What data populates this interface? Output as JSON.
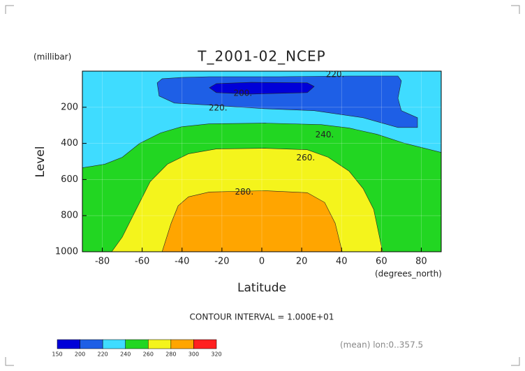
{
  "chart_data": {
    "type": "contour",
    "title": "T_2001-02_NCEP",
    "y_unit": "(millibar)",
    "y_label": "Level",
    "x_label": "Latitude",
    "x_unit": "(degrees_north)",
    "caption": "CONTOUR INTERVAL = 1.000E+01",
    "note": "(mean) lon:0..357.5",
    "xlim": [
      -90,
      90
    ],
    "xticks": [
      -80,
      -60,
      -40,
      -20,
      0,
      20,
      40,
      60,
      80
    ],
    "ylim": [
      0,
      1000
    ],
    "yticks": [
      200,
      400,
      600,
      800,
      1000
    ],
    "y_inverted": true,
    "grid": true,
    "colorbar": {
      "levels": [
        150,
        200,
        220,
        240,
        260,
        280,
        300,
        320
      ],
      "colors": [
        "#0000d8",
        "#1e5fe6",
        "#3fdcff",
        "#22d622",
        "#f4f41c",
        "#ffa500",
        "#ff2020"
      ]
    },
    "regions": [
      {
        "level": 220,
        "lat": [
          -90,
          90,
          90,
          -90
        ],
        "pressure": [
          0,
          0,
          1000,
          1000
        ]
      },
      {
        "level": 240,
        "lat": [
          -90,
          -78.8,
          -70,
          -61.3,
          -50.8,
          -40.3,
          -26.3,
          1.7,
          29.8,
          43.8,
          57.8,
          71.8,
          90,
          90,
          -90
        ],
        "pressure": [
          535,
          515,
          477,
          400,
          342,
          308,
          292,
          288,
          296,
          315,
          350,
          400,
          450,
          1000,
          1000
        ]
      },
      {
        "level": 260,
        "lat": [
          -75.3,
          -70,
          -63,
          -56,
          -47.3,
          -36.8,
          -22.8,
          1.7,
          22.8,
          33.3,
          43.8,
          50.8,
          56.1,
          60.6
        ],
        "pressure": [
          1000,
          919,
          765,
          612,
          515,
          458,
          431,
          427,
          435,
          477,
          554,
          650,
          765,
          1000
        ]
      },
      {
        "level": 280,
        "lat": [
          -50,
          -45.5,
          -42,
          -36.8,
          -26.3,
          1.7,
          22.8,
          31.5,
          36.8,
          40.3
        ],
        "pressure": [
          1000,
          842,
          746,
          696,
          669,
          662,
          673,
          727,
          842,
          1000
        ]
      },
      {
        "level": 200,
        "lat": [
          -52.5,
          -50,
          -40.3,
          -26.3,
          8.8,
          43.8,
          68.3,
          70,
          68.3,
          70,
          78.1,
          78.1,
          68.3,
          50.8,
          26.3,
          1.7,
          -26.3,
          -43.8,
          -51.5
        ],
        "pressure": [
          65,
          42,
          35,
          31,
          31,
          27,
          27,
          54,
          150,
          219,
          258,
          312,
          312,
          258,
          219,
          208,
          188,
          177,
          138
        ]
      },
      {
        "level": 150,
        "lat": [
          -26.3,
          -22.8,
          -5.3,
          22.8,
          26.3,
          22.8,
          -5.3,
          -22.8
        ],
        "pressure": [
          92,
          69,
          62,
          65,
          85,
          119,
          127,
          119
        ]
      }
    ],
    "annotations": [
      {
        "text": "220.",
        "lat": 36.8,
        "pressure": 19
      },
      {
        "text": "200.",
        "lat": -9.5,
        "pressure": 123
      },
      {
        "text": "220.",
        "lat": -22,
        "pressure": 204
      },
      {
        "text": "240.",
        "lat": 31.5,
        "pressure": 354
      },
      {
        "text": "260.",
        "lat": 22,
        "pressure": 481
      },
      {
        "text": "280.",
        "lat": -8.8,
        "pressure": 669
      }
    ]
  }
}
